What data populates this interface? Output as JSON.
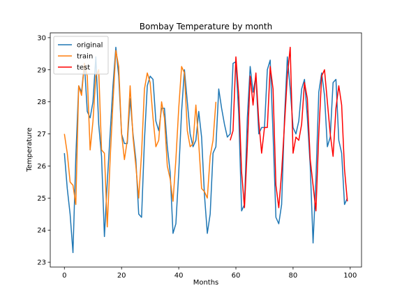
{
  "chart_data": {
    "type": "line",
    "title": "Bombay Temperature by month",
    "x_label": "Months",
    "y_label": "Temperature",
    "x": [
      0,
      1,
      2,
      3,
      4,
      5,
      6,
      7,
      8,
      9,
      10,
      11,
      12,
      13,
      14,
      15,
      16,
      17,
      18,
      19,
      20,
      21,
      22,
      23,
      24,
      25,
      26,
      27,
      28,
      29,
      30,
      31,
      32,
      33,
      34,
      35,
      36,
      37,
      38,
      39,
      40,
      41,
      42,
      43,
      44,
      45,
      46,
      47,
      48,
      49,
      50,
      51,
      52,
      53,
      54,
      55,
      56,
      57,
      58,
      59,
      60,
      61,
      62,
      63,
      64,
      65,
      66,
      67,
      68,
      69,
      70,
      71,
      72,
      73,
      74,
      75,
      76,
      77,
      78,
      79,
      80,
      81,
      82,
      83,
      84,
      85,
      86,
      87,
      88,
      89,
      90,
      91,
      92,
      93,
      94,
      95,
      96,
      97,
      98,
      99
    ],
    "series": [
      {
        "name": "original",
        "color": "#1f77b4",
        "values": [
          26.4,
          25.3,
          24.5,
          23.3,
          26.3,
          28.5,
          28.3,
          29.2,
          27.7,
          27.5,
          28.0,
          29.4,
          27.3,
          26.3,
          23.8,
          25.5,
          27.0,
          28.5,
          29.7,
          28.8,
          27.0,
          26.7,
          26.7,
          28.1,
          27.0,
          26.2,
          24.5,
          24.4,
          26.8,
          28.5,
          28.8,
          28.7,
          27.4,
          27.1,
          27.8,
          27.8,
          26.6,
          25.8,
          23.9,
          24.2,
          25.8,
          27.7,
          29.0,
          28.0,
          27.0,
          26.6,
          26.8,
          27.7,
          26.9,
          25.1,
          23.9,
          24.5,
          26.4,
          26.6,
          28.4,
          27.8,
          27.3,
          26.9,
          27.0,
          29.2,
          29.25,
          27.6,
          24.6,
          24.8,
          27.5,
          29.1,
          28.3,
          28.8,
          27.0,
          27.2,
          27.2,
          29.0,
          29.3,
          27.0,
          24.4,
          24.2,
          24.8,
          27.5,
          29.4,
          28.4,
          27.2,
          27.0,
          27.4,
          28.4,
          28.7,
          27.5,
          26.0,
          23.6,
          25.6,
          28.3,
          28.9,
          28.2,
          26.6,
          26.9,
          28.6,
          28.7,
          26.8,
          26.4,
          24.8,
          25.0
        ]
      },
      {
        "name": "train",
        "color": "#ff7f0e",
        "values": [
          27.0,
          26.4,
          25.5,
          25.4,
          24.8,
          28.5,
          28.2,
          29.2,
          28.8,
          26.5,
          27.4,
          28.8,
          29.0,
          26.5,
          26.4,
          24.1,
          26.2,
          28.0,
          29.6,
          29.1,
          27.0,
          26.2,
          26.8,
          28.5,
          26.9,
          26.0,
          25.0,
          26.4,
          28.4,
          28.9,
          28.6,
          27.5,
          26.6,
          26.8,
          28.0,
          27.5,
          26.0,
          25.6,
          24.9,
          26.2,
          27.8,
          29.1,
          28.9,
          27.1,
          26.6,
          26.7,
          27.9,
          26.7,
          25.3,
          25.2,
          25.0,
          26.3,
          26.8,
          28.0,
          null,
          null,
          null,
          null,
          null,
          null,
          null,
          null,
          null,
          null,
          null,
          null,
          null,
          null,
          null,
          null,
          null,
          null,
          null,
          null,
          null,
          null,
          null,
          null,
          null,
          null,
          null,
          null,
          null,
          null,
          null,
          null,
          null,
          null,
          null,
          null,
          null,
          null,
          null,
          null,
          null,
          null,
          null,
          null,
          null,
          null
        ]
      },
      {
        "name": "test",
        "color": "#ff0000",
        "values": [
          null,
          null,
          null,
          null,
          null,
          null,
          null,
          null,
          null,
          null,
          null,
          null,
          null,
          null,
          null,
          null,
          null,
          null,
          null,
          null,
          null,
          null,
          null,
          null,
          null,
          null,
          null,
          null,
          null,
          null,
          null,
          null,
          null,
          null,
          null,
          null,
          null,
          null,
          null,
          null,
          null,
          null,
          null,
          null,
          null,
          null,
          null,
          null,
          null,
          null,
          null,
          null,
          null,
          null,
          null,
          null,
          null,
          null,
          26.8,
          27.1,
          29.4,
          28.2,
          25.8,
          24.7,
          26.6,
          28.8,
          27.9,
          28.9,
          27.4,
          26.4,
          27.2,
          27.2,
          29.1,
          28.4,
          25.4,
          24.7,
          25.8,
          27.3,
          28.8,
          29.7,
          26.4,
          26.9,
          26.8,
          27.3,
          28.6,
          28.1,
          26.2,
          25.4,
          24.6,
          27.0,
          28.8,
          29.0,
          28.0,
          27.0,
          26.3,
          27.8,
          28.5,
          27.9,
          25.9,
          24.9
        ]
      }
    ],
    "xlim": [
      -4.95,
      103.95
    ],
    "xticks": [
      0,
      20,
      40,
      60,
      80,
      100
    ],
    "ylim": [
      22.85,
      30.15
    ],
    "yticks": [
      23,
      24,
      25,
      26,
      27,
      28,
      29,
      30
    ],
    "legend": "upper left",
    "grid": false
  }
}
